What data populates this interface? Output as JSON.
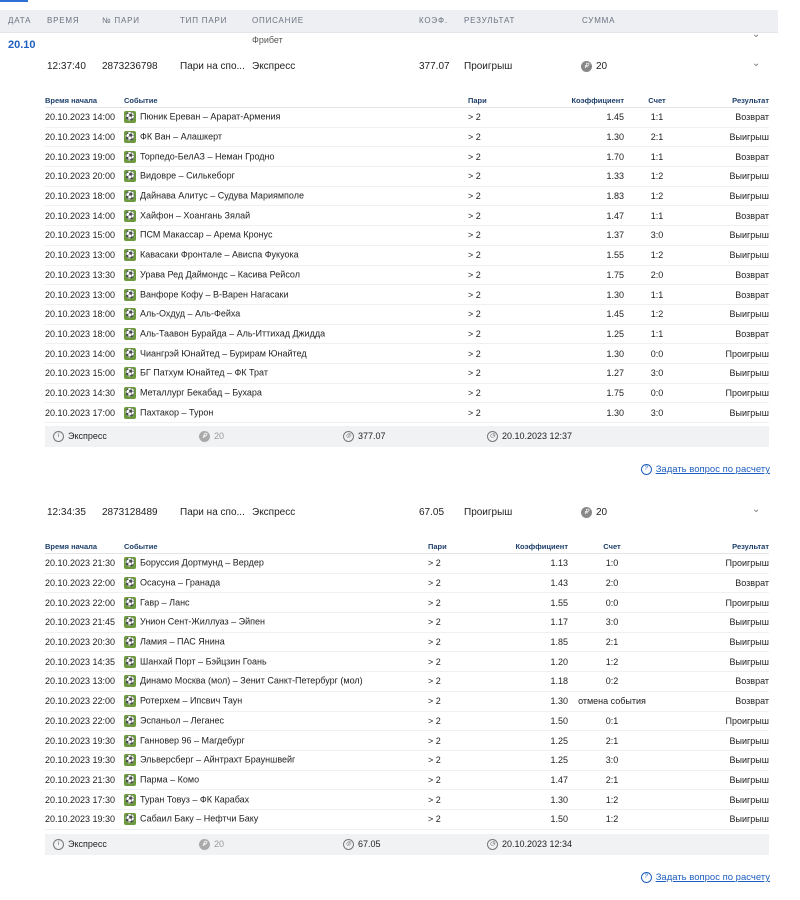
{
  "columns": [
    "ДАТА",
    "ВРЕМЯ",
    "№ ПАРИ",
    "ТИП ПАРИ",
    "ОПИСАНИЕ",
    "КОЭФ.",
    "РЕЗУЛЬТАТ",
    "СУММА"
  ],
  "date_label": "20.10",
  "cut_description": "Фрибет",
  "ask_label": "Задать вопрос по расчету",
  "event_headers": {
    "start": "Время начала",
    "event": "Событие",
    "bet": "Пари",
    "coef": "Коэффициент",
    "score": "Счет",
    "result": "Результат"
  },
  "bet1": {
    "time": "12:37:40",
    "number": "2873236798",
    "type": "Пари на спо...",
    "description": "Экспресс",
    "coef": "377.07",
    "result": "Проигрыш",
    "sum": "20",
    "events": [
      {
        "start": "20.10.2023 14:00",
        "event": "Пюник Ереван – Арарат-Армения",
        "bet": "> 2",
        "coef": "1.45",
        "score": "1:1",
        "result": "Возврат"
      },
      {
        "start": "20.10.2023 14:00",
        "event": "ФК Ван – Алашкерт",
        "bet": "> 2",
        "coef": "1.30",
        "score": "2:1",
        "result": "Выигрыш"
      },
      {
        "start": "20.10.2023 19:00",
        "event": "Торпедо-БелАЗ – Неман Гродно",
        "bet": "> 2",
        "coef": "1.70",
        "score": "1:1",
        "result": "Возврат"
      },
      {
        "start": "20.10.2023 20:00",
        "event": "Видовре – Силькеборг",
        "bet": "> 2",
        "coef": "1.33",
        "score": "1:2",
        "result": "Выигрыш"
      },
      {
        "start": "20.10.2023 18:00",
        "event": "Дайнава Алитус – Судува Мариямполе",
        "bet": "> 2",
        "coef": "1.83",
        "score": "1:2",
        "result": "Выигрыш"
      },
      {
        "start": "20.10.2023 14:00",
        "event": "Хайфон – Хоангань Зялай",
        "bet": "> 2",
        "coef": "1.47",
        "score": "1:1",
        "result": "Возврат"
      },
      {
        "start": "20.10.2023 15:00",
        "event": "ПСМ Макассар – Арема Кронус",
        "bet": "> 2",
        "coef": "1.37",
        "score": "3:0",
        "result": "Выигрыш"
      },
      {
        "start": "20.10.2023 13:00",
        "event": "Кавасаки Фронтале – Ависпа Фукуока",
        "bet": "> 2",
        "coef": "1.55",
        "score": "1:2",
        "result": "Выигрыш"
      },
      {
        "start": "20.10.2023 13:30",
        "event": "Урава Ред Даймондс – Касива Рейсол",
        "bet": "> 2",
        "coef": "1.75",
        "score": "2:0",
        "result": "Возврат"
      },
      {
        "start": "20.10.2023 13:00",
        "event": "Ванфоре Кофу – В-Варен Нагасаки",
        "bet": "> 2",
        "coef": "1.30",
        "score": "1:1",
        "result": "Возврат"
      },
      {
        "start": "20.10.2023 18:00",
        "event": "Аль-Охдуд – Аль-Фейха",
        "bet": "> 2",
        "coef": "1.45",
        "score": "1:2",
        "result": "Выигрыш"
      },
      {
        "start": "20.10.2023 18:00",
        "event": "Аль-Таавон Бурайда – Аль-Иттихад Джидда",
        "bet": "> 2",
        "coef": "1.25",
        "score": "1:1",
        "result": "Возврат"
      },
      {
        "start": "20.10.2023 14:00",
        "event": "Чиангрэй Юнайтед – Бурирам Юнайтед",
        "bet": "> 2",
        "coef": "1.30",
        "score": "0:0",
        "result": "Проигрыш"
      },
      {
        "start": "20.10.2023 15:00",
        "event": "БГ Патхум Юнайтед – ФК Трат",
        "bet": "> 2",
        "coef": "1.27",
        "score": "3:0",
        "result": "Выигрыш"
      },
      {
        "start": "20.10.2023 14:30",
        "event": "Металлург Бекабад – Бухара",
        "bet": "> 2",
        "coef": "1.75",
        "score": "0:0",
        "result": "Проигрыш"
      },
      {
        "start": "20.10.2023 17:00",
        "event": "Пахтакор – Турон",
        "bet": "> 2",
        "coef": "1.30",
        "score": "3:0",
        "result": "Выигрыш"
      }
    ],
    "summary": {
      "type": "Экспресс",
      "sum": "20",
      "coef": "377.07",
      "datetime": "20.10.2023 12:37"
    }
  },
  "bet2": {
    "time": "12:34:35",
    "number": "2873128489",
    "type": "Пари на спо...",
    "description": "Экспресс",
    "coef": "67.05",
    "result": "Проигрыш",
    "sum": "20",
    "events": [
      {
        "start": "20.10.2023 21:30",
        "event": "Боруссия Дортмунд – Вердер",
        "bet": "> 2",
        "coef": "1.13",
        "score": "1:0",
        "result": "Проигрыш"
      },
      {
        "start": "20.10.2023 22:00",
        "event": "Осасуна – Гранада",
        "bet": "> 2",
        "coef": "1.43",
        "score": "2:0",
        "result": "Возврат"
      },
      {
        "start": "20.10.2023 22:00",
        "event": "Гавр – Ланс",
        "bet": "> 2",
        "coef": "1.55",
        "score": "0:0",
        "result": "Проигрыш"
      },
      {
        "start": "20.10.2023 21:45",
        "event": "Унион Сент-Жиллуаз – Эйпен",
        "bet": "> 2",
        "coef": "1.17",
        "score": "3:0",
        "result": "Выигрыш"
      },
      {
        "start": "20.10.2023 20:30",
        "event": "Ламия – ПАС Янина",
        "bet": "> 2",
        "coef": "1.85",
        "score": "2:1",
        "result": "Выигрыш"
      },
      {
        "start": "20.10.2023 14:35",
        "event": "Шанхай Порт – Бэйцзин Гоань",
        "bet": "> 2",
        "coef": "1.20",
        "score": "1:2",
        "result": "Выигрыш"
      },
      {
        "start": "20.10.2023 13:00",
        "event": "Динамо Москва (мол) – Зенит Санкт-Петербург (мол)",
        "bet": "> 2",
        "coef": "1.18",
        "score": "0:2",
        "result": "Возврат"
      },
      {
        "start": "20.10.2023 22:00",
        "event": "Ротерхем – Ипсвич Таун",
        "bet": "> 2",
        "coef": "1.30",
        "score": "отмена события",
        "result": "Возврат"
      },
      {
        "start": "20.10.2023 22:00",
        "event": "Эспаньол – Леганес",
        "bet": "> 2",
        "coef": "1.50",
        "score": "0:1",
        "result": "Проигрыш"
      },
      {
        "start": "20.10.2023 19:30",
        "event": "Ганновер 96 – Магдебург",
        "bet": "> 2",
        "coef": "1.25",
        "score": "2:1",
        "result": "Выигрыш"
      },
      {
        "start": "20.10.2023 19:30",
        "event": "Эльверсберг – Айнтрахт Брауншвейг",
        "bet": "> 2",
        "coef": "1.25",
        "score": "3:0",
        "result": "Выигрыш"
      },
      {
        "start": "20.10.2023 21:30",
        "event": "Парма – Комо",
        "bet": "> 2",
        "coef": "1.47",
        "score": "2:1",
        "result": "Выигрыш"
      },
      {
        "start": "20.10.2023 17:30",
        "event": "Туран Товуз – ФК Карабах",
        "bet": "> 2",
        "coef": "1.30",
        "score": "1:2",
        "result": "Выигрыш"
      },
      {
        "start": "20.10.2023 19:30",
        "event": "Сабаил Баку – Нефтчи Баку",
        "bet": "> 2",
        "coef": "1.50",
        "score": "1:2",
        "result": "Выигрыш"
      }
    ],
    "summary": {
      "type": "Экспресс",
      "sum": "20",
      "coef": "67.05",
      "datetime": "20.10.2023 12:34"
    }
  }
}
